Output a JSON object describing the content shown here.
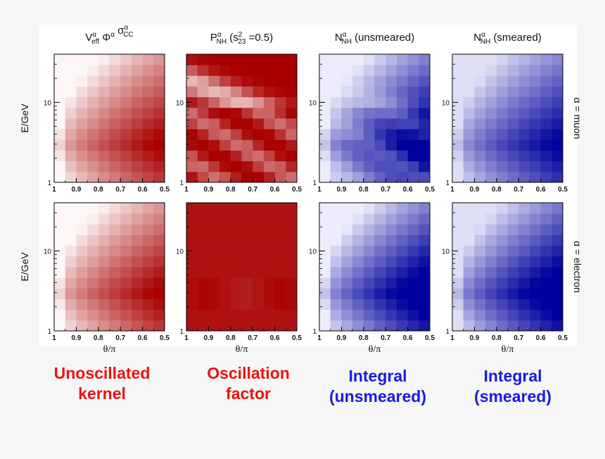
{
  "chart_data": {
    "type": "heatmap",
    "column_titles": [
      {
        "main": "V",
        "sup": "α",
        "sub": "eff",
        "rest": "Φ",
        "sup2": "α",
        "rest2": "σ",
        "sup3": "α",
        "sub3": "CC"
      },
      {
        "main": "P",
        "sup": "α",
        "sub": "NH",
        "rest": "(s",
        "sup2": "2",
        "sub2": "23",
        "rest2": "=0.5)"
      },
      {
        "main": "N",
        "sup": "α",
        "sub": "NH",
        "rest": "(unsmeared)"
      },
      {
        "main": "N",
        "sup": "α",
        "sub": "NH",
        "rest": "(smeared)"
      }
    ],
    "row_labels": [
      "α = muon",
      "α = electron"
    ],
    "ylabel": "E/GeV",
    "xlabel": "θ/π",
    "x_ticks": [
      "1",
      "0.9",
      "0.8",
      "0.7",
      "0.6",
      "0.5"
    ],
    "x_range": [
      1,
      0.5
    ],
    "y_ticks": [
      "1",
      "10"
    ],
    "y_scale": "log",
    "y_range": [
      1,
      40
    ],
    "grid": {
      "x_bins": 10,
      "y_bins": 12
    },
    "colormaps": [
      {
        "name": "red",
        "low": "#fdf6f6",
        "high": "#a80000"
      },
      {
        "name": "red",
        "low": "#fdf6f6",
        "high": "#a80000"
      },
      {
        "name": "blue",
        "low": "#f8f8ff",
        "high": "#00009c"
      },
      {
        "name": "blue",
        "low": "#f8f8ff",
        "high": "#00009c"
      }
    ],
    "panels": [
      {
        "row": 0,
        "col": 0,
        "title": "Unoscillated kernel, muon"
      },
      {
        "row": 0,
        "col": 1,
        "title": "Oscillation factor, muon"
      },
      {
        "row": 0,
        "col": 2,
        "title": "Integral unsmeared, muon"
      },
      {
        "row": 0,
        "col": 3,
        "title": "Integral smeared, muon"
      },
      {
        "row": 1,
        "col": 0,
        "title": "Unoscillated kernel, electron"
      },
      {
        "row": 1,
        "col": 1,
        "title": "Oscillation factor, electron"
      },
      {
        "row": 1,
        "col": 2,
        "title": "Integral unsmeared, electron"
      },
      {
        "row": 1,
        "col": 3,
        "title": "Integral smeared, electron"
      }
    ]
  },
  "captions": [
    {
      "line1": "Unoscillated",
      "line2": "kernel",
      "color": "#ee1111"
    },
    {
      "line1": "Oscillation",
      "line2": "factor",
      "color": "#ee1111"
    },
    {
      "line1": "Integral",
      "line2": "(unsmeared)",
      "color": "#1a1ae6"
    },
    {
      "line1": "Integral",
      "line2": "(smeared)",
      "color": "#1a1ae6"
    }
  ]
}
